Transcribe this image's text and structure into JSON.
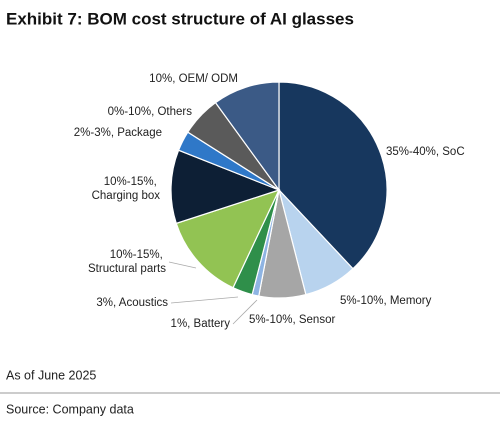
{
  "title": "Exhibit 7: BOM cost structure of AI glasses",
  "chart_data": {
    "type": "pie",
    "labels": [
      "35%-40%, SoC",
      "5%-10%, Memory",
      "5%-10%, Sensor",
      "1%, Battery",
      "3%, Acoustics",
      "10%-15%, Structural parts",
      "10%-15%, Charging box",
      "2%-3%, Package",
      "0%-10%, Others",
      "10%, OEM/ ODM"
    ],
    "values": [
      38,
      8,
      7,
      1,
      3,
      13,
      11,
      3,
      6,
      10
    ],
    "colors": [
      "#17375e",
      "#b8d3ee",
      "#a6a6a6",
      "#8eb4e3",
      "#2f8f4a",
      "#92c353",
      "#0d1f35",
      "#2f78c8",
      "#5a5a5a",
      "#3b5a86"
    ]
  },
  "footnote": "As of June 2025",
  "source": "Source: Company data"
}
